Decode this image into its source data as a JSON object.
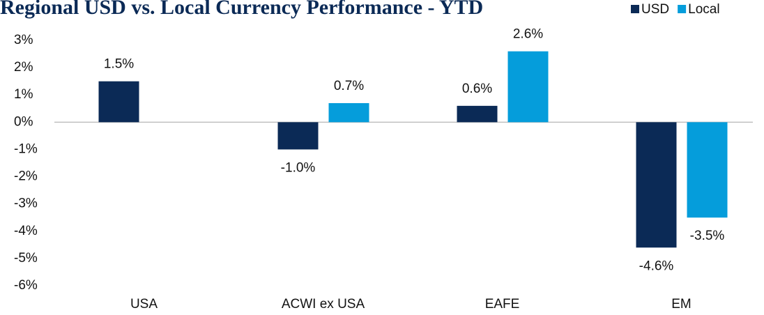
{
  "chart_data": {
    "type": "bar",
    "title": "Regional USD vs. Local Currency Performance - YTD",
    "categories": [
      "USA",
      "ACWI ex USA",
      "EAFE",
      "EM"
    ],
    "series": [
      {
        "name": "USD",
        "color": "#0b2a56",
        "values": [
          1.5,
          -1.0,
          0.6,
          -4.6
        ],
        "value_labels": [
          "1.5%",
          "-1.0%",
          "0.6%",
          "-4.6%"
        ]
      },
      {
        "name": "Local",
        "color": "#059ddb",
        "values": [
          null,
          0.7,
          2.6,
          -3.5
        ],
        "value_labels": [
          null,
          "0.7%",
          "2.6%",
          "-3.5%"
        ]
      }
    ],
    "ylim": [
      -6,
      3
    ],
    "yticks": [
      {
        "value": 3,
        "label": "3%"
      },
      {
        "value": 2,
        "label": "2%"
      },
      {
        "value": 1,
        "label": "1%"
      },
      {
        "value": 0,
        "label": "0%"
      },
      {
        "value": -1,
        "label": "-1%"
      },
      {
        "value": -2,
        "label": "-2%"
      },
      {
        "value": -3,
        "label": "-3%"
      },
      {
        "value": -4,
        "label": "-4%"
      },
      {
        "value": -5,
        "label": "-5%"
      },
      {
        "value": -6,
        "label": "-6%"
      }
    ],
    "grid": false,
    "legend": "top-right"
  }
}
